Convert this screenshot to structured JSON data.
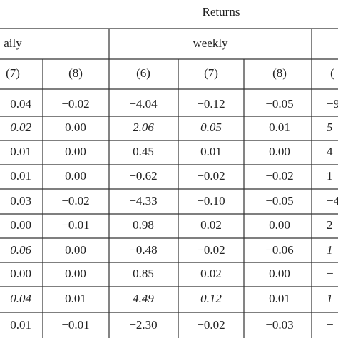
{
  "header": {
    "title": "Returns",
    "groups": [
      "aily",
      "weekly"
    ],
    "columns": [
      "(7)",
      "(8)",
      "(6)",
      "(7)",
      "(8)",
      "("
    ]
  },
  "table": {
    "rows": [
      [
        "0.04",
        "−0.02",
        "−4.04",
        "−0.12",
        "−0.05",
        "−9"
      ],
      [
        "0.02",
        "0.00",
        "2.06",
        "0.05",
        "0.01",
        "5"
      ],
      [
        "0.01",
        "0.00",
        "0.45",
        "0.01",
        "0.00",
        "4"
      ],
      [
        "0.01",
        "0.00",
        "−0.62",
        "−0.02",
        "−0.02",
        "1"
      ],
      [
        "0.03",
        "−0.02",
        "−4.33",
        "−0.10",
        "−0.05",
        "−4"
      ],
      [
        "0.00",
        "−0.01",
        "0.98",
        "0.02",
        "0.00",
        "2"
      ],
      [
        "0.06",
        "0.00",
        "−0.48",
        "−0.02",
        "−0.06",
        "1"
      ],
      [
        "0.00",
        "0.00",
        "0.85",
        "0.02",
        "0.00",
        "−"
      ],
      [
        "0.04",
        "0.01",
        "4.49",
        "0.12",
        "0.01",
        "1"
      ],
      [
        "0.01",
        "−0.01",
        "−2.30",
        "−0.02",
        "−0.03",
        "−"
      ]
    ]
  }
}
